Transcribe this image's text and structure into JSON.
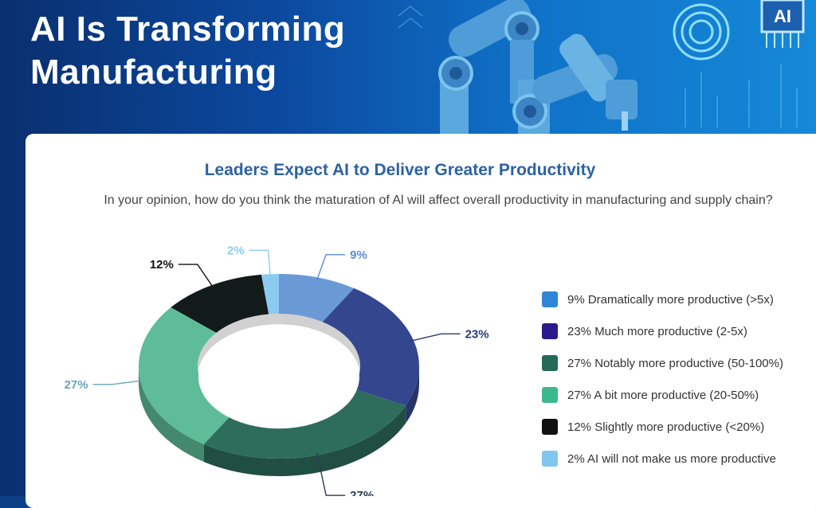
{
  "header": {
    "title_line1": "AI Is Transforming",
    "title_line2": "Manufacturing",
    "badge": "AI"
  },
  "chart_data": {
    "type": "pie",
    "title": "Leaders Expect AI to Deliver Greater Productivity",
    "subtitle": "In your opinion, how do you think the maturation of Al will affect overall productivity in manufacturing and supply chain?",
    "slices": [
      {
        "label": "Dramatically more productive (>5x)",
        "value": 9,
        "data_label": "9%",
        "legend": "9% Dramatically more productive (>5x)",
        "color": "#6a9ad6",
        "legend_color": "#2f86d8",
        "label_color": "#5a8ccd"
      },
      {
        "label": "Much more productive (2-5x)",
        "value": 23,
        "data_label": "23%",
        "legend": "23% Much more productive (2-5x)",
        "color": "#34478e",
        "legend_color": "#2a1a8c",
        "label_color": "#2b3b78"
      },
      {
        "label": "Notably more productive (50-100%)",
        "value": 27,
        "data_label": "27%",
        "legend": "27% Notably more productive (50-100%)",
        "color": "#2e6d5c",
        "legend_color": "#246a56",
        "label_color": "#2b3b55"
      },
      {
        "label": "A bit more productive (20-50%)",
        "value": 27,
        "data_label": "27%",
        "legend": "27% A bit more productive (20-50%)",
        "color": "#5ebd98",
        "legend_color": "#3cb88e",
        "label_color": "#6aa5b8"
      },
      {
        "label": "Slightly more productive (<20%)",
        "value": 12,
        "data_label": "12%",
        "legend": "12% Slightly more productive (<20%)",
        "color": "#121a1a",
        "legend_color": "#111",
        "label_color": "#111"
      },
      {
        "label": "AI will not make us more productive",
        "value": 2,
        "data_label": "2%",
        "legend": "2% AI will not make us more productive",
        "color": "#8ccbf0",
        "legend_color": "#7fc6f0",
        "label_color": "#8ccbf0"
      }
    ]
  }
}
